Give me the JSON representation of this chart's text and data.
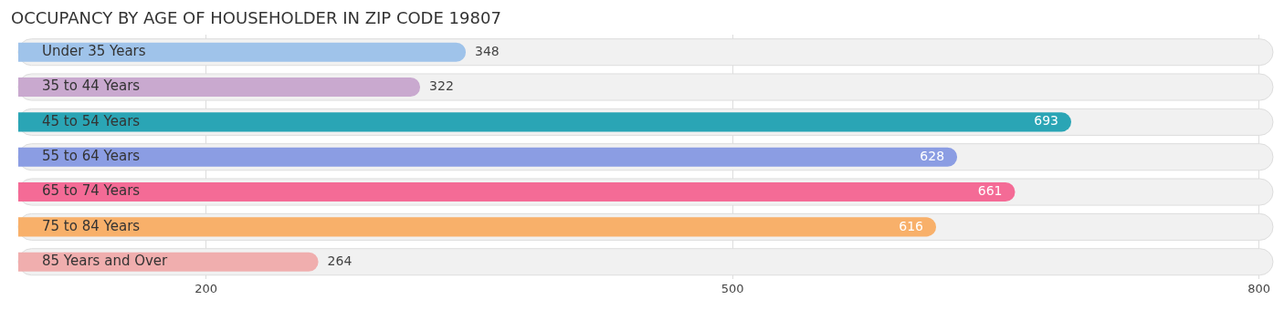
{
  "chart_data": {
    "type": "bar",
    "orientation": "horizontal",
    "title": "OCCUPANCY BY AGE OF HOUSEHOLDER IN ZIP CODE 19807",
    "categories": [
      "Under 35 Years",
      "35 to 44 Years",
      "45 to 54 Years",
      "55 to 64 Years",
      "65 to 74 Years",
      "75 to 84 Years",
      "85 Years and Over"
    ],
    "values": [
      348,
      322,
      693,
      628,
      661,
      616,
      264
    ],
    "colors": [
      "#9fc3ea",
      "#c9a9cf",
      "#2aa5b5",
      "#8b9de3",
      "#f46b96",
      "#f8b06a",
      "#f0aeae"
    ],
    "xlim": [
      93,
      808
    ],
    "xticks": [
      200,
      500,
      800
    ],
    "grid": "x",
    "data_labels": true,
    "legend": false
  }
}
